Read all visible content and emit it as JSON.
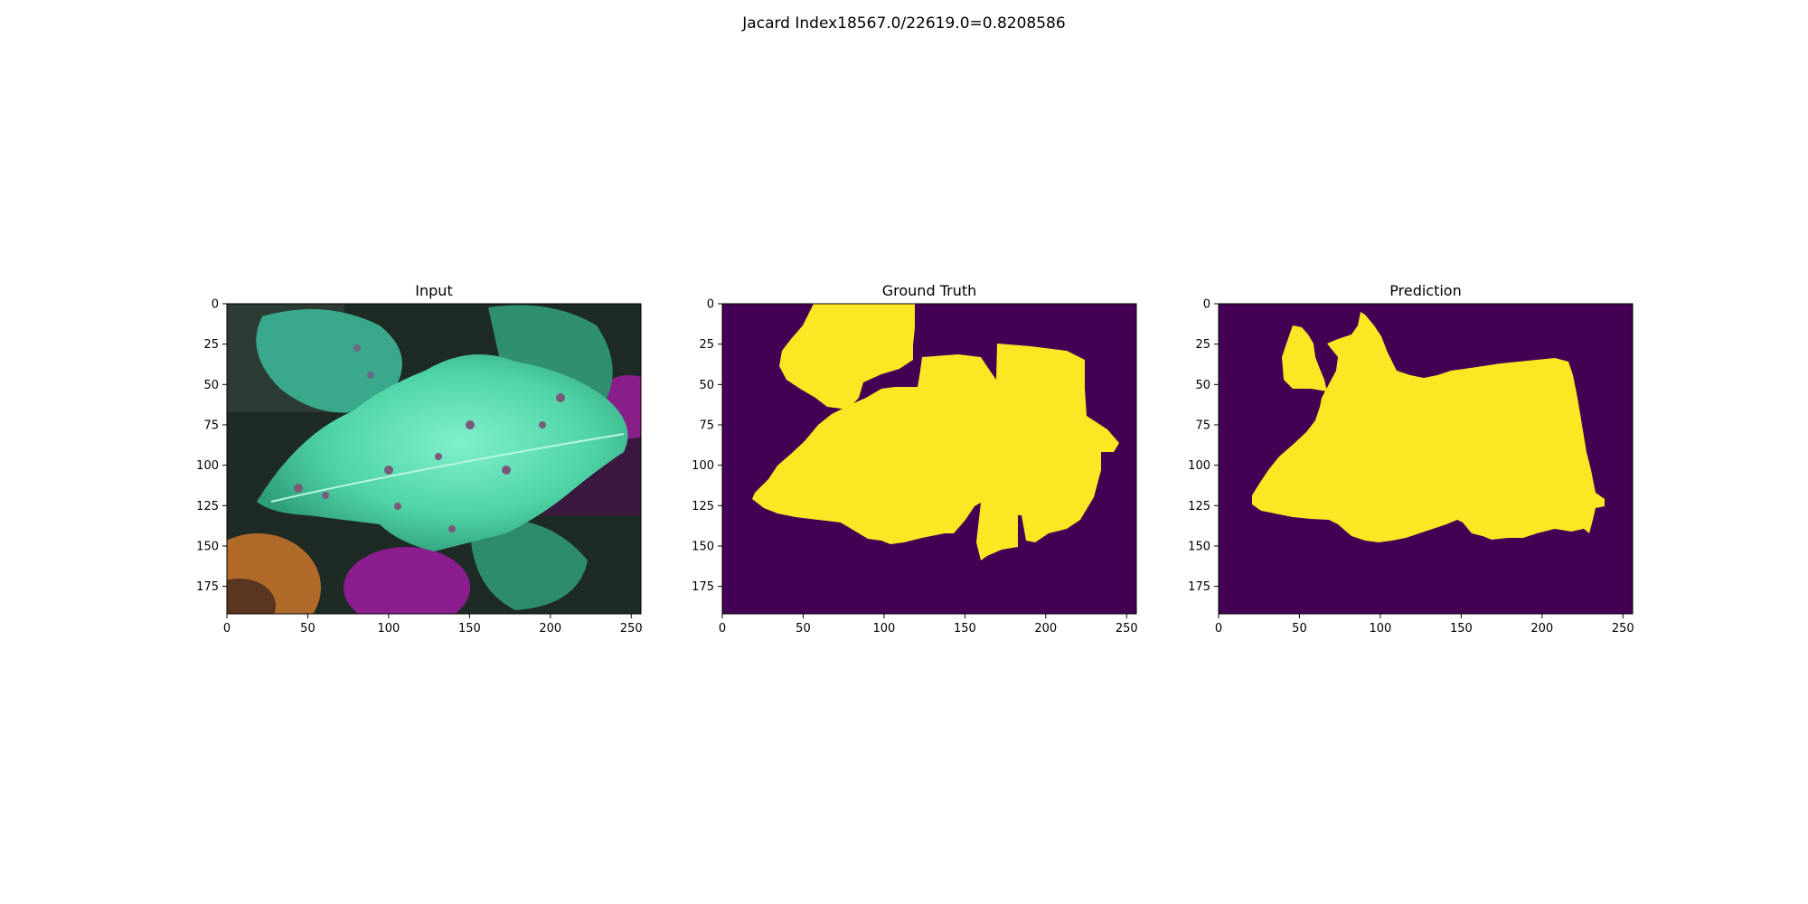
{
  "suptitle": "Jacard Index18567.0/22619.0=0.8208586",
  "chart_data": [
    {
      "type": "image",
      "title": "Input",
      "xlim": [
        0,
        256
      ],
      "ylim": [
        192,
        0
      ],
      "xticks": [
        0,
        50,
        100,
        150,
        200,
        250
      ],
      "yticks": [
        0,
        25,
        50,
        75,
        100,
        125,
        150,
        175
      ]
    },
    {
      "type": "heatmap",
      "title": "Ground Truth",
      "colors": {
        "background": "#440154",
        "mask": "#fde725"
      },
      "xlim": [
        0,
        256
      ],
      "ylim": [
        192,
        0
      ],
      "xticks": [
        0,
        50,
        100,
        150,
        200,
        250
      ],
      "yticks": [
        0,
        25,
        50,
        75,
        100,
        125,
        150,
        175
      ]
    },
    {
      "type": "heatmap",
      "title": "Prediction",
      "colors": {
        "background": "#440154",
        "mask": "#fde725"
      },
      "xlim": [
        0,
        256
      ],
      "ylim": [
        192,
        0
      ],
      "xticks": [
        0,
        50,
        100,
        150,
        200,
        250
      ],
      "yticks": [
        0,
        25,
        50,
        75,
        100,
        125,
        150,
        175
      ]
    }
  ]
}
